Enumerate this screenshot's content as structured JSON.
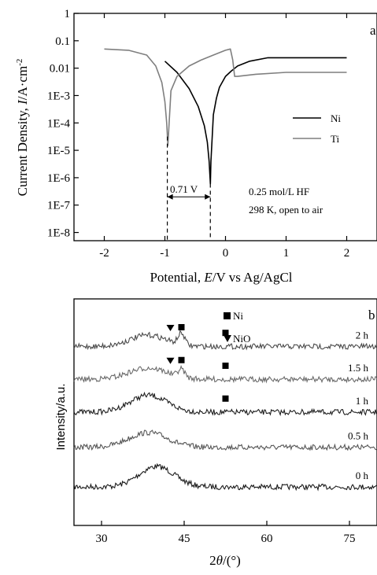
{
  "chart_data": [
    {
      "panel": "a",
      "type": "line",
      "xlabel_parts": [
        "Potential, ",
        "E",
        "/V vs Ag/AgCl"
      ],
      "ylabel_parts": [
        "Current Density, ",
        "I",
        "/A·cm",
        "-2"
      ],
      "xlim": [
        -2.5,
        2.5
      ],
      "ylim_log10": [
        -8.3,
        0
      ],
      "yscale": "log",
      "x_ticks": [
        "-2",
        "-1",
        "0",
        "1",
        "2"
      ],
      "x_tick_values": [
        -2,
        -1,
        0,
        1,
        2
      ],
      "y_ticks": [
        "1",
        "0.1",
        "0.01",
        "1E-3",
        "1E-4",
        "1E-5",
        "1E-6",
        "1E-7",
        "1E-8"
      ],
      "y_tick_exponents": [
        0,
        -1,
        -2,
        -3,
        -4,
        -5,
        -6,
        -7,
        -8
      ],
      "series": [
        {
          "name": "Ni",
          "color": "#000000",
          "x": [
            -1.0,
            -0.8,
            -0.6,
            -0.45,
            -0.35,
            -0.3,
            -0.27,
            -0.25,
            -0.24,
            -0.22,
            -0.2,
            -0.15,
            -0.1,
            0.0,
            0.1,
            0.2,
            0.4,
            0.7,
            1.0,
            1.5,
            2.0
          ],
          "y": [
            0.018,
            0.007,
            0.0018,
            0.0004,
            8e-05,
            2e-05,
            4e-06,
            6e-07,
            4e-06,
            3e-05,
            0.0002,
            0.0008,
            0.002,
            0.005,
            0.008,
            0.012,
            0.018,
            0.024,
            0.024,
            0.024,
            0.024
          ]
        },
        {
          "name": "Ti",
          "color": "#7f7f7f",
          "x": [
            -2.0,
            -1.6,
            -1.3,
            -1.15,
            -1.05,
            -1.0,
            -0.97,
            -0.95,
            -0.93,
            -0.9,
            -0.8,
            -0.6,
            -0.4,
            -0.2,
            0.0,
            0.08,
            0.12,
            0.15,
            0.2,
            0.5,
            1.0,
            1.5,
            2.0
          ],
          "y": [
            0.05,
            0.045,
            0.03,
            0.012,
            0.003,
            0.0006,
            0.0001,
            1.5e-05,
            0.0001,
            0.0015,
            0.005,
            0.012,
            0.02,
            0.03,
            0.045,
            0.05,
            0.02,
            0.005,
            0.005,
            0.006,
            0.007,
            0.007,
            0.007
          ]
        }
      ],
      "legend": {
        "position": "right",
        "entries": [
          "Ni",
          "Ti"
        ]
      },
      "annotations": {
        "panel_label": "a",
        "gap_label": "0.71 V",
        "gap_x": [
          -0.96,
          -0.25
        ],
        "gap_y": 2e-07,
        "condition_1": "0.25 mol/L HF",
        "condition_2": "298 K, open to air"
      }
    },
    {
      "panel": "b",
      "type": "line",
      "xlabel_parts": [
        "2",
        "θ",
        "/(°)"
      ],
      "ylabel": "Intensity/a.u.",
      "xlim": [
        25,
        80
      ],
      "x_ticks": [
        "30",
        "45",
        "60",
        "75"
      ],
      "x_tick_values": [
        30,
        45,
        60,
        75
      ],
      "series": [
        {
          "name": "0 h",
          "color": "#1a1a1a",
          "baseline_frac": 0.83,
          "hump_center": 40,
          "hump_width": 3.2,
          "hump_height": 0.09,
          "noise": 0.012
        },
        {
          "name": "0.5 h",
          "color": "#555555",
          "baseline_frac": 0.655,
          "hump_center": 38.5,
          "hump_width": 3.5,
          "hump_height": 0.065,
          "noise": 0.012
        },
        {
          "name": "1 h",
          "color": "#1e1e1e",
          "baseline_frac": 0.5,
          "hump_center": 38.5,
          "hump_width": 3.3,
          "hump_height": 0.075,
          "noise": 0.012
        },
        {
          "name": "1.5 h",
          "color": "#6a6a6a",
          "baseline_frac": 0.355,
          "hump_center": 38.5,
          "hump_width": 3.5,
          "hump_height": 0.05,
          "noise": 0.012,
          "peak_center": 44.5,
          "peak_height": 0.035
        },
        {
          "name": "2 h",
          "color": "#4a4a4a",
          "baseline_frac": 0.21,
          "hump_center": 38.5,
          "hump_width": 3.3,
          "hump_height": 0.05,
          "noise": 0.012,
          "peak_center": 44.5,
          "peak_height": 0.05
        }
      ],
      "legend": {
        "position": "top-center",
        "entries": [
          "Ni",
          "NiO"
        ]
      },
      "markers": [
        {
          "symbol": "square",
          "label": "Ni",
          "x": 44.5,
          "series": "2 h"
        },
        {
          "symbol": "square",
          "label": "Ni",
          "x": 52.5,
          "series": "2 h"
        },
        {
          "symbol": "triangle",
          "label": "NiO",
          "x": 42.5,
          "series": "2 h"
        },
        {
          "symbol": "square",
          "label": "Ni",
          "x": 44.5,
          "series": "1.5 h"
        },
        {
          "symbol": "square",
          "label": "Ni",
          "x": 52.5,
          "series": "1.5 h"
        },
        {
          "symbol": "triangle",
          "label": "NiO",
          "x": 42.5,
          "series": "1.5 h"
        },
        {
          "symbol": "square",
          "label": "Ni",
          "x": 52.5,
          "series": "1 h"
        }
      ],
      "annotations": {
        "panel_label": "b"
      }
    }
  ]
}
